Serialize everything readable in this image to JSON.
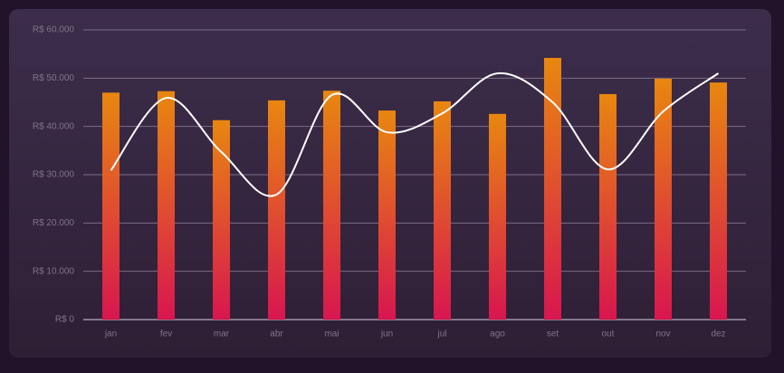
{
  "chart_data": {
    "type": "bar",
    "categories": [
      "jan",
      "fev",
      "mar",
      "abr",
      "mai",
      "jun",
      "jul",
      "ago",
      "set",
      "out",
      "nov",
      "dez"
    ],
    "series": [
      {
        "type": "bar",
        "color": [
          "#e8870f",
          "#d8164f"
        ],
        "values": [
          47000,
          47300,
          41300,
          45400,
          47400,
          43300,
          45200,
          42600,
          54200,
          46700,
          49900,
          49100
        ]
      },
      {
        "type": "line",
        "color": "#ffffff",
        "values": [
          30900,
          45900,
          34700,
          25900,
          46500,
          38800,
          42700,
          51000,
          45000,
          31100,
          43100,
          51000
        ]
      }
    ],
    "ylim": [
      0,
      60000
    ],
    "yticks": [
      {
        "value": 0,
        "label": "R$ 0"
      },
      {
        "value": 10000,
        "label": "R$ 10.000"
      },
      {
        "value": 20000,
        "label": "R$ 20.000"
      },
      {
        "value": 30000,
        "label": "R$ 30.000"
      },
      {
        "value": 40000,
        "label": "R$ 40.000"
      },
      {
        "value": 50000,
        "label": "R$ 50.000"
      },
      {
        "value": 60000,
        "label": "R$ 60.000"
      }
    ],
    "grid": true
  }
}
